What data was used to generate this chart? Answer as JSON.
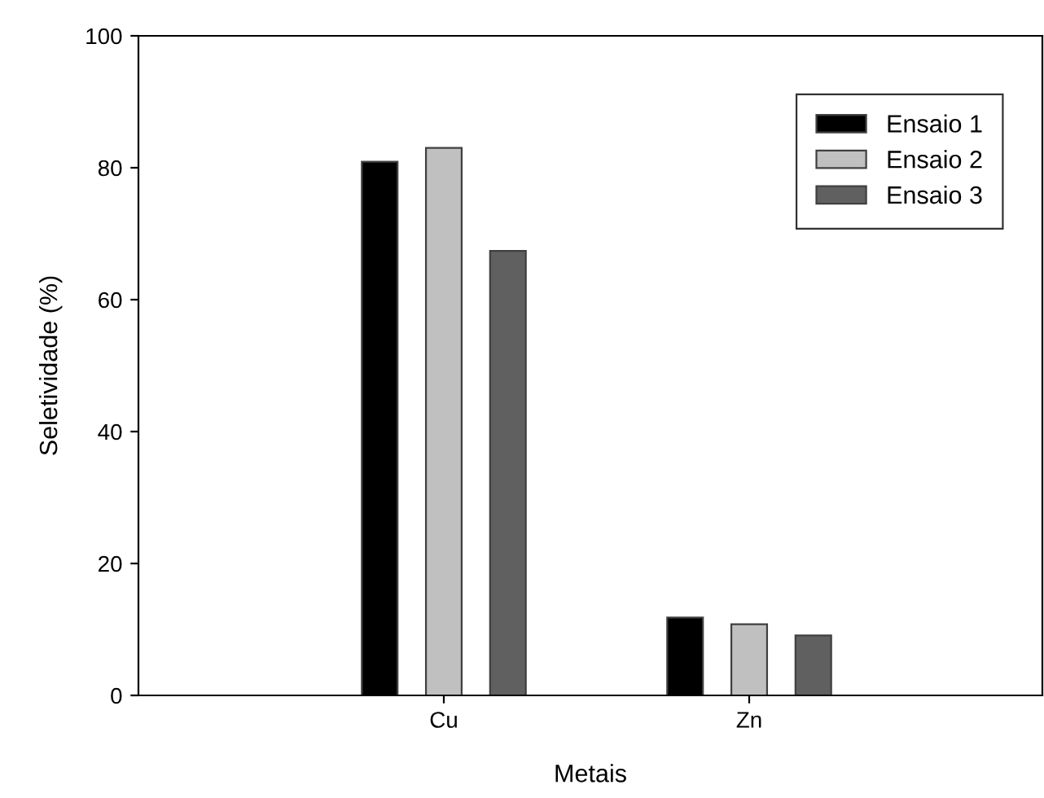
{
  "chart_data": {
    "type": "bar",
    "xlabel": "Metais",
    "ylabel": "Seletividade (%)",
    "categories": [
      "Cu",
      "Zn"
    ],
    "series": [
      {
        "name": "Ensaio 1",
        "color": "#000000",
        "values": [
          80.9,
          11.8
        ]
      },
      {
        "name": "Ensaio 2",
        "color": "#c0c0c0",
        "values": [
          83.0,
          10.8
        ]
      },
      {
        "name": "Ensaio 3",
        "color": "#606060",
        "values": [
          67.4,
          9.1
        ]
      }
    ],
    "ylim": [
      0,
      100
    ],
    "yticks": [
      0,
      20,
      40,
      60,
      80,
      100
    ],
    "grid": false,
    "legend": "top right"
  }
}
